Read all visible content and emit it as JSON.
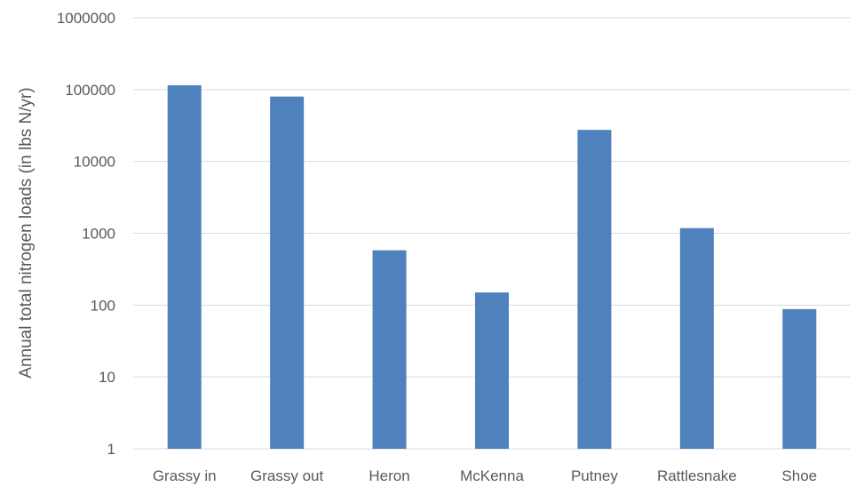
{
  "chart_data": {
    "type": "bar",
    "title": "",
    "xlabel": "",
    "ylabel": "Annual total nitrogen loads (in lbs N/yr)",
    "y_scale": "log",
    "ylim": [
      1,
      1000000
    ],
    "y_ticks": [
      1,
      10,
      100,
      1000,
      10000,
      100000,
      1000000
    ],
    "y_tick_labels": [
      "1",
      "10",
      "100",
      "1000",
      "10000",
      "100000",
      "1000000"
    ],
    "categories": [
      "Grassy in",
      "Grassy out",
      "Heron",
      "McKenna",
      "Putney",
      "Rattlesnake",
      "Shoe"
    ],
    "values": [
      115000,
      80000,
      580,
      150,
      27500,
      1180,
      88
    ],
    "grid": true,
    "legend": "none",
    "bar_color": "#4f81bd",
    "grid_color": "#d9d9d9",
    "text_color": "#595959"
  }
}
